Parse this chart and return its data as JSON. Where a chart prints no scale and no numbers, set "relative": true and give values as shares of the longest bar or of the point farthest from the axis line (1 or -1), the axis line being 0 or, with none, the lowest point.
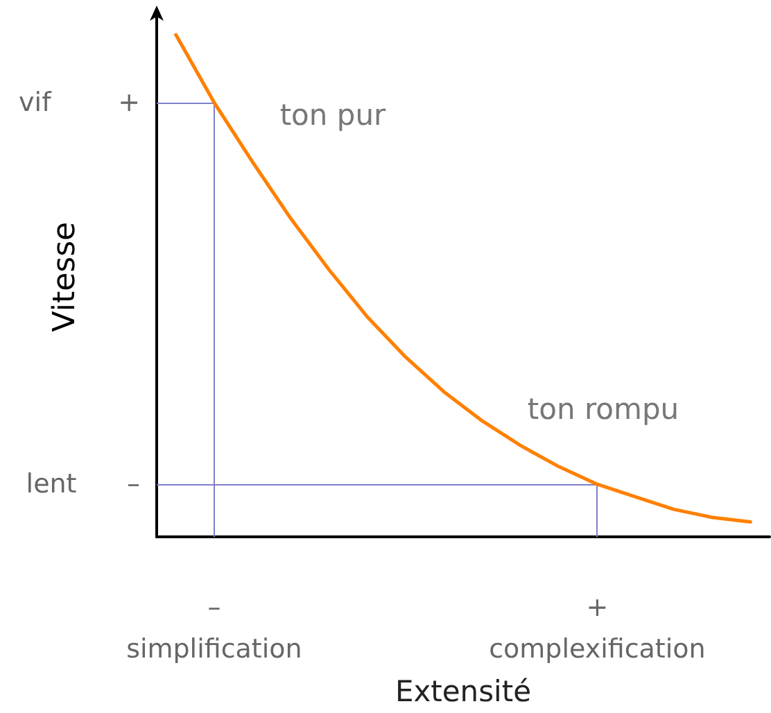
{
  "chart_data": {
    "type": "line",
    "xlabel": "Extensité",
    "ylabel": "Vitesse",
    "marker": "none",
    "relative": true,
    "categories": [
      null,
      "–\nsimplification",
      null,
      null,
      null,
      null,
      null,
      null,
      null,
      null,
      null,
      "+\ncomplexification",
      null,
      null,
      null,
      null
    ],
    "series": [
      {
        "color": "#ff8000",
        "values": [
          1,
          0.865,
          0.747,
          0.634,
          0.532,
          0.438,
          0.358,
          0.289,
          0.231,
          0.182,
          0.14,
          0.105,
          0.08,
          0.055,
          0.039,
          0.03
        ]
      }
    ],
    "ref_lines": [
      {
        "axis": "x",
        "value": "–\nsimplification",
        "color": "#8080c8"
      },
      {
        "axis": "y",
        "value": 0.865,
        "label": "vif        +",
        "color": "#8080c8"
      },
      {
        "axis": "x",
        "value": "+\ncomplexification",
        "color": "#8080c8"
      },
      {
        "axis": "y",
        "value": 0.105,
        "label": "lent      –",
        "color": "#8080c8"
      }
    ],
    "annotations": [
      "ton pur",
      "ton rompu"
    ]
  }
}
